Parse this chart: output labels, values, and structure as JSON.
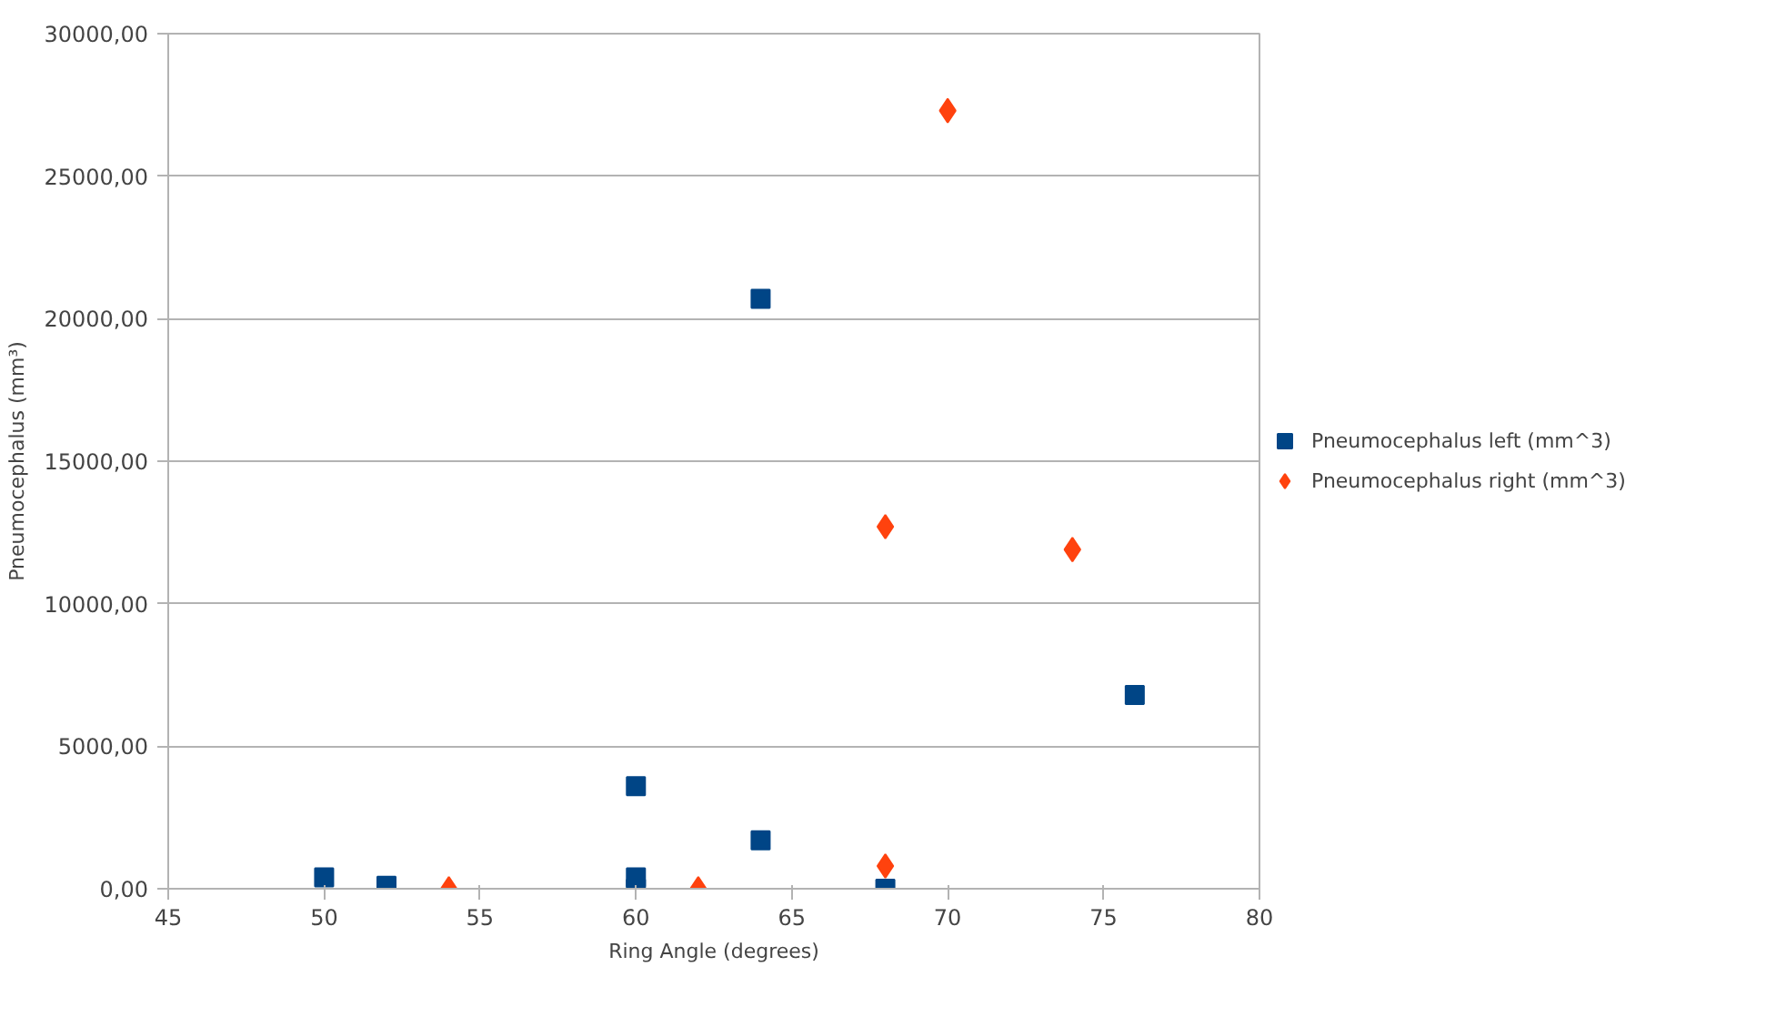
{
  "chart_data": {
    "type": "scatter",
    "xlabel": "Ring Angle (degrees)",
    "ylabel": "Pneumocephalus (mm³)",
    "xlim": [
      45,
      80
    ],
    "xticks": [
      45,
      50,
      55,
      60,
      65,
      70,
      75,
      80
    ],
    "ylim": [
      0,
      30000
    ],
    "yticks": [
      {
        "value": 0,
        "label": "0,00"
      },
      {
        "value": 5000,
        "label": "5000,00"
      },
      {
        "value": 10000,
        "label": "10000,00"
      },
      {
        "value": 15000,
        "label": "15000,00"
      },
      {
        "value": 20000,
        "label": "20000,00"
      },
      {
        "value": 25000,
        "label": "25000,00"
      },
      {
        "value": 30000,
        "label": "30000,00"
      }
    ],
    "grid": "y",
    "legend": "right",
    "series": [
      {
        "name": "Pneumocephalus left (mm^3)",
        "color": "#004586",
        "marker": "square",
        "x": [
          50,
          52,
          60,
          60,
          60,
          64,
          64,
          68,
          76
        ],
        "values": [
          400,
          100,
          3600,
          400,
          0,
          20700,
          1700,
          0,
          6800
        ]
      },
      {
        "name": "Pneumocephalus right (mm^3)",
        "color": "#ff420e",
        "marker": "diamond",
        "x": [
          54,
          62,
          68,
          68,
          70,
          74
        ],
        "values": [
          0,
          0,
          12700,
          800,
          27300,
          11900
        ]
      }
    ]
  }
}
